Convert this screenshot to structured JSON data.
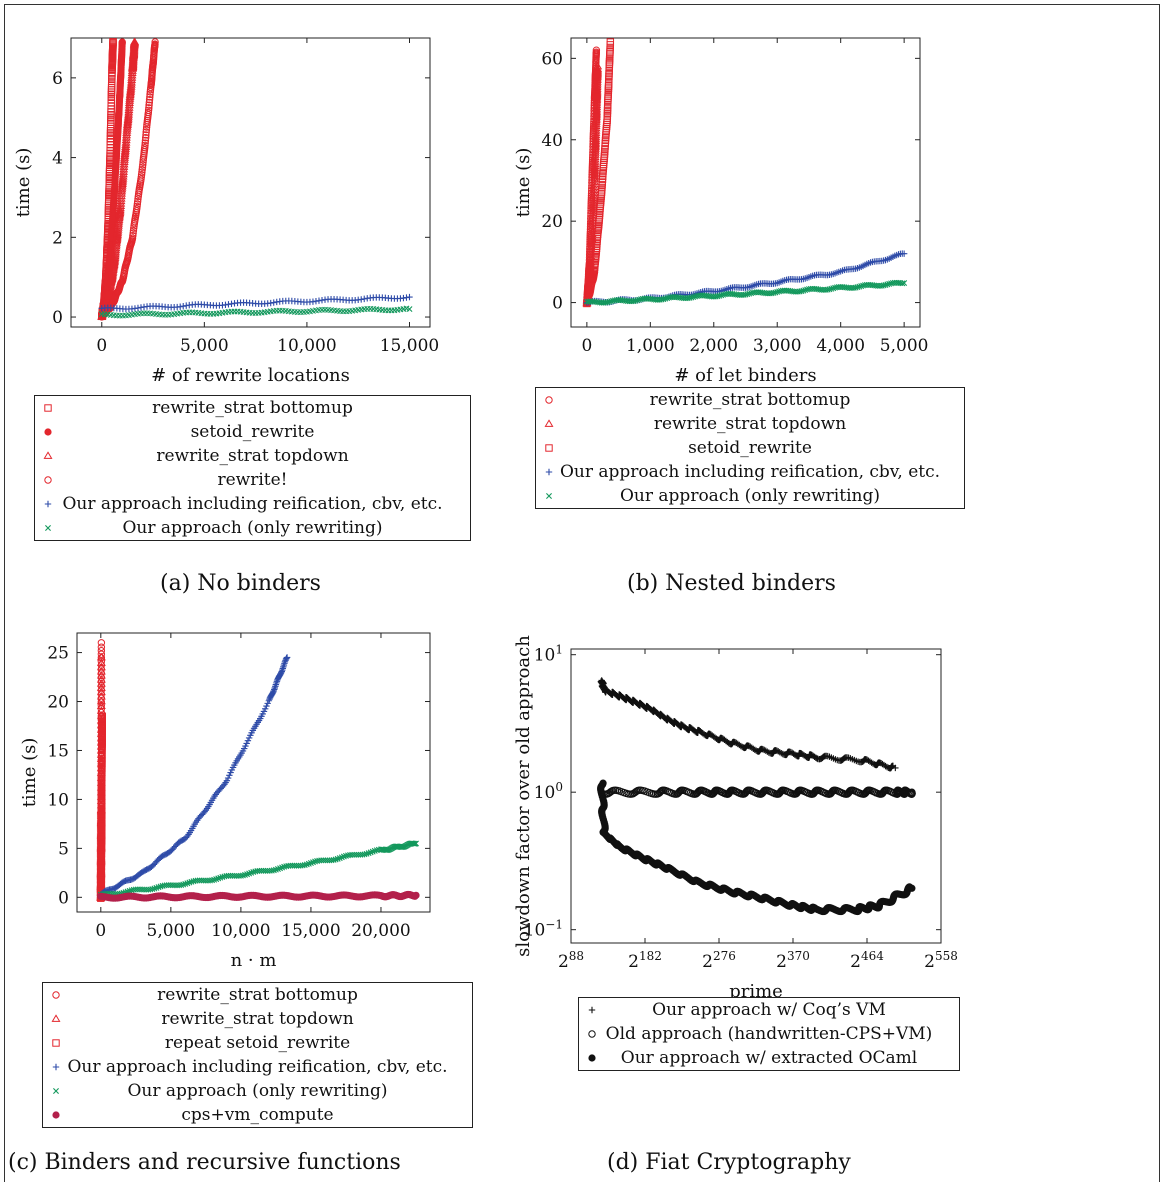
{
  "charts": [
    {
      "id": "a",
      "caption": "(a) No binders",
      "xlabel": "# of rewrite locations",
      "ylabel": "time (s)",
      "xticks": [
        "0",
        "5,000",
        "10,000",
        "15,000"
      ],
      "yticks": [
        "0",
        "2",
        "4",
        "6"
      ],
      "legend": [
        {
          "label": "rewrite_strat bottomup",
          "marker": "square",
          "color": "#e3262d"
        },
        {
          "label": "setoid_rewrite",
          "marker": "dot",
          "color": "#e3262d"
        },
        {
          "label": "rewrite_strat topdown",
          "marker": "triangle",
          "color": "#e3262d"
        },
        {
          "label": "rewrite!",
          "marker": "circle",
          "color": "#e3262d"
        },
        {
          "label": "Our approach including reification, cbv, etc.",
          "marker": "plus",
          "color": "#2e4ba8"
        },
        {
          "label": "Our approach (only rewriting)",
          "marker": "cross",
          "color": "#13985c"
        }
      ]
    },
    {
      "id": "b",
      "caption": "(b) Nested binders",
      "xlabel": "# of let binders",
      "ylabel": "time (s)",
      "xticks": [
        "0",
        "1,000",
        "2,000",
        "3,000",
        "4,000",
        "5,000"
      ],
      "yticks": [
        "0",
        "20",
        "40",
        "60"
      ],
      "legend": [
        {
          "label": "rewrite_strat bottomup",
          "marker": "circle",
          "color": "#e3262d"
        },
        {
          "label": "rewrite_strat topdown",
          "marker": "triangle",
          "color": "#e3262d"
        },
        {
          "label": "setoid_rewrite",
          "marker": "square",
          "color": "#e3262d"
        },
        {
          "label": "Our approach including reification, cbv, etc.",
          "marker": "plus",
          "color": "#2e4ba8"
        },
        {
          "label": "Our approach (only rewriting)",
          "marker": "cross",
          "color": "#13985c"
        }
      ]
    },
    {
      "id": "c",
      "caption": "(c) Binders and recursive functions",
      "xlabel": "n · m",
      "ylabel": "time (s)",
      "xticks": [
        "0",
        "5,000",
        "10,000",
        "15,000",
        "20,000"
      ],
      "yticks": [
        "0",
        "5",
        "10",
        "15",
        "20",
        "25"
      ],
      "legend": [
        {
          "label": "rewrite_strat bottomup",
          "marker": "circle",
          "color": "#e3262d"
        },
        {
          "label": "rewrite_strat topdown",
          "marker": "triangle",
          "color": "#e3262d"
        },
        {
          "label": "repeat setoid_rewrite",
          "marker": "square",
          "color": "#e3262d"
        },
        {
          "label": "Our approach including reification, cbv, etc.",
          "marker": "plus",
          "color": "#2e4ba8"
        },
        {
          "label": "Our approach (only rewriting)",
          "marker": "cross",
          "color": "#13985c"
        },
        {
          "label": "cps+vm_compute",
          "marker": "dot",
          "color": "#b3204b"
        }
      ]
    },
    {
      "id": "d",
      "caption": "(d) Fiat Cryptography",
      "xlabel": "prime",
      "ylabel": "slowdown factor over old approach",
      "xticks": [
        "2^88",
        "2^182",
        "2^276",
        "2^370",
        "2^464",
        "2^558"
      ],
      "yticks": [
        "10^−1",
        "10^0",
        "10^1"
      ],
      "legend": [
        {
          "label": "Our approach w/ Coq’s VM",
          "marker": "plus",
          "color": "#111111"
        },
        {
          "label": "Old approach (handwritten-CPS+VM)",
          "marker": "circle",
          "color": "#111111"
        },
        {
          "label": "Our approach w/ extracted OCaml",
          "marker": "dot",
          "color": "#111111"
        }
      ]
    }
  ],
  "chart_data": [
    {
      "type": "scatter",
      "xlabel": "# of rewrite locations",
      "ylabel": "time (s)",
      "xlim": [
        -1500,
        16000
      ],
      "ylim": [
        -0.25,
        7
      ],
      "series": [
        {
          "name": "rewrite_strat bottomup",
          "points": [
            [
              0,
              0.02
            ],
            [
              100,
              0.3
            ],
            [
              200,
              1.0
            ],
            [
              300,
              2.2
            ],
            [
              400,
              4.0
            ],
            [
              500,
              6.2
            ],
            [
              550,
              6.9
            ]
          ]
        },
        {
          "name": "setoid_rewrite",
          "points": [
            [
              0,
              0.02
            ],
            [
              200,
              0.5
            ],
            [
              400,
              1.5
            ],
            [
              600,
              3.0
            ],
            [
              800,
              4.8
            ],
            [
              900,
              5.8
            ],
            [
              1000,
              6.9
            ]
          ]
        },
        {
          "name": "rewrite_strat topdown",
          "points": [
            [
              0,
              0.02
            ],
            [
              300,
              0.4
            ],
            [
              600,
              1.3
            ],
            [
              900,
              2.7
            ],
            [
              1200,
              4.5
            ],
            [
              1500,
              6.2
            ],
            [
              1600,
              6.9
            ]
          ]
        },
        {
          "name": "rewrite!",
          "points": [
            [
              0,
              0.02
            ],
            [
              500,
              0.3
            ],
            [
              1000,
              0.9
            ],
            [
              1500,
              2.0
            ],
            [
              2000,
              3.8
            ],
            [
              2400,
              5.8
            ],
            [
              2600,
              6.9
            ]
          ]
        },
        {
          "name": "Our approach including reification, cbv, etc.",
          "points": [
            [
              0,
              0.2
            ],
            [
              5000,
              0.3
            ],
            [
              10000,
              0.4
            ],
            [
              15000,
              0.5
            ]
          ]
        },
        {
          "name": "Our approach (only rewriting)",
          "points": [
            [
              0,
              0.05
            ],
            [
              5000,
              0.1
            ],
            [
              10000,
              0.15
            ],
            [
              15000,
              0.2
            ]
          ]
        }
      ]
    },
    {
      "type": "scatter",
      "xlabel": "# of let binders",
      "ylabel": "time (s)",
      "xlim": [
        -250,
        5250
      ],
      "ylim": [
        -6,
        65
      ],
      "series": [
        {
          "name": "rewrite_strat bottomup",
          "points": [
            [
              0,
              0
            ],
            [
              40,
              10
            ],
            [
              80,
              30
            ],
            [
              120,
              50
            ],
            [
              150,
              62
            ]
          ]
        },
        {
          "name": "rewrite_strat topdown",
          "points": [
            [
              0,
              0
            ],
            [
              60,
              10
            ],
            [
              120,
              30
            ],
            [
              150,
              46
            ],
            [
              170,
              58
            ]
          ]
        },
        {
          "name": "setoid_rewrite",
          "points": [
            [
              0,
              0
            ],
            [
              120,
              8
            ],
            [
              220,
              25
            ],
            [
              320,
              45
            ],
            [
              370,
              64
            ]
          ]
        },
        {
          "name": "Our approach including reification, cbv, etc.",
          "points": [
            [
              0,
              0
            ],
            [
              1000,
              1
            ],
            [
              2000,
              2.8
            ],
            [
              3000,
              5
            ],
            [
              4000,
              7.5
            ],
            [
              5000,
              12
            ]
          ]
        },
        {
          "name": "Our approach (only rewriting)",
          "points": [
            [
              0,
              0
            ],
            [
              1000,
              0.8
            ],
            [
              2000,
              1.7
            ],
            [
              3000,
              2.6
            ],
            [
              4000,
              3.6
            ],
            [
              5000,
              4.8
            ]
          ]
        }
      ]
    },
    {
      "type": "scatter",
      "xlabel": "n · m",
      "ylabel": "time (s)",
      "xlim": [
        -1700,
        23500
      ],
      "ylim": [
        -1.5,
        27
      ],
      "series": [
        {
          "name": "rewrite_strat bottomup",
          "points": [
            [
              0,
              0
            ],
            [
              10,
              5
            ],
            [
              20,
              8
            ],
            [
              30,
              12.5
            ],
            [
              40,
              26
            ]
          ]
        },
        {
          "name": "rewrite_strat topdown",
          "points": [
            [
              0,
              0
            ],
            [
              15,
              3
            ],
            [
              25,
              6
            ],
            [
              35,
              9
            ],
            [
              40,
              24.5
            ]
          ]
        },
        {
          "name": "repeat setoid_rewrite",
          "points": [
            [
              0,
              0
            ],
            [
              20,
              2
            ],
            [
              40,
              5.5
            ],
            [
              60,
              8.5
            ],
            [
              80,
              15
            ],
            [
              100,
              18.5
            ]
          ]
        },
        {
          "name": "Our approach including reification, cbv, etc.",
          "points": [
            [
              0,
              0.3
            ],
            [
              3000,
              2.5
            ],
            [
              6000,
              6
            ],
            [
              9000,
              12
            ],
            [
              12000,
              20
            ],
            [
              13300,
              24.5
            ]
          ]
        },
        {
          "name": "Our approach (only rewriting)",
          "points": [
            [
              0,
              0.2
            ],
            [
              5000,
              1.2
            ],
            [
              10000,
              2.3
            ],
            [
              15000,
              3.5
            ],
            [
              20000,
              4.8
            ],
            [
              22500,
              5.5
            ]
          ]
        },
        {
          "name": "cps+vm_compute",
          "points": [
            [
              0,
              0
            ],
            [
              5000,
              0.05
            ],
            [
              10000,
              0.1
            ],
            [
              15000,
              0.12
            ],
            [
              20000,
              0.15
            ],
            [
              22500,
              0.2
            ]
          ]
        }
      ]
    },
    {
      "type": "scatter",
      "xlabel": "prime",
      "ylabel": "slowdown factor over old approach",
      "xscale": "log2",
      "yscale": "log10",
      "xlim": [
        88,
        558
      ],
      "ylim": [
        0.08,
        11
      ],
      "series": [
        {
          "name": "Our approach w/ Coq’s VM",
          "points": [
            [
              127,
              6.5
            ],
            [
              130,
              5.5
            ],
            [
              150,
              5.0
            ],
            [
              170,
              4.5
            ],
            [
              190,
              4.0
            ],
            [
              210,
              3.4
            ],
            [
              230,
              3.0
            ],
            [
              255,
              2.7
            ],
            [
              290,
              2.3
            ],
            [
              330,
              2.0
            ],
            [
              370,
              1.9
            ],
            [
              400,
              1.8
            ],
            [
              460,
              1.7
            ],
            [
              500,
              1.5
            ]
          ]
        },
        {
          "name": "Old approach (handwritten-CPS+VM)",
          "points": [
            [
              127,
              1
            ],
            [
              200,
              1
            ],
            [
              255,
              1
            ],
            [
              300,
              1
            ],
            [
              350,
              1
            ],
            [
              400,
              1
            ],
            [
              450,
              1
            ],
            [
              500,
              1
            ],
            [
              521,
              1
            ]
          ]
        },
        {
          "name": "Our approach w/ extracted OCaml",
          "points": [
            [
              127,
              1.2
            ],
            [
              130,
              0.5
            ],
            [
              150,
              0.4
            ],
            [
              180,
              0.33
            ],
            [
              210,
              0.28
            ],
            [
              250,
              0.22
            ],
            [
              290,
              0.19
            ],
            [
              330,
              0.17
            ],
            [
              370,
              0.15
            ],
            [
              400,
              0.14
            ],
            [
              450,
              0.14
            ],
            [
              480,
              0.15
            ],
            [
              521,
              0.2
            ]
          ]
        }
      ]
    }
  ]
}
